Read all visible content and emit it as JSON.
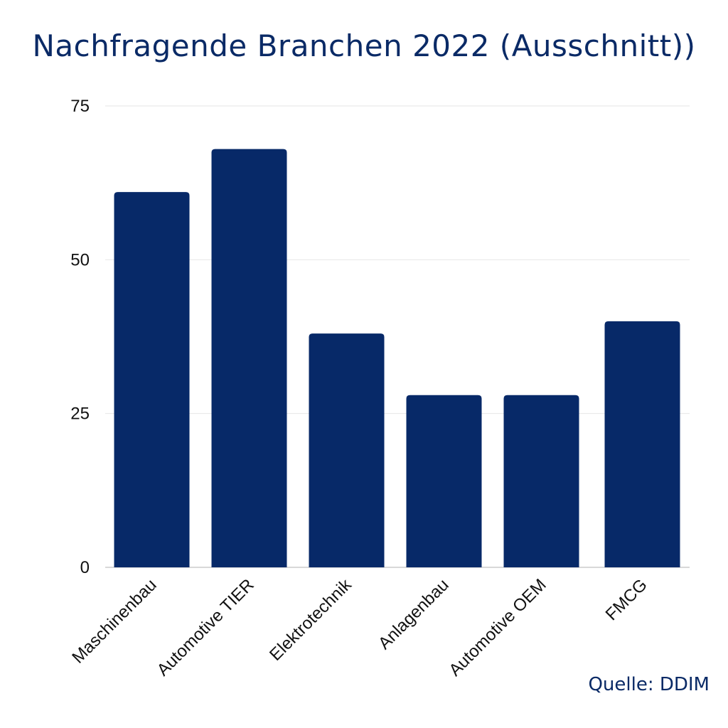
{
  "chart_data": {
    "type": "bar",
    "title": "Nachfragende Branchen 2022 (Ausschnitt))",
    "source": "Quelle: DDIM",
    "categories": [
      "Maschinenbau",
      "Automotive TIER",
      "Elektrotechnik",
      "Anlagenbau",
      "Automotive OEM",
      "FMCG"
    ],
    "values": [
      61,
      68,
      38,
      28,
      28,
      40
    ],
    "ylim": [
      0,
      75
    ],
    "yticks": [
      0,
      25,
      50,
      75
    ],
    "grid": true,
    "bar_color": "#072968"
  }
}
